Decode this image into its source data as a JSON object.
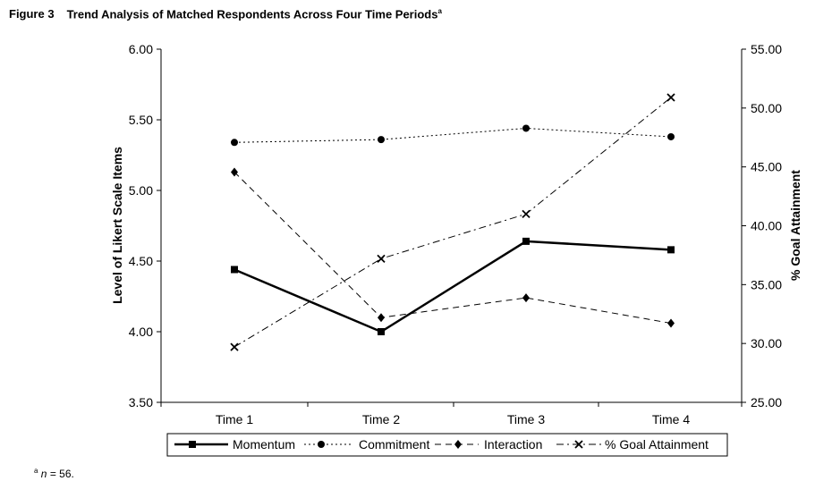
{
  "figure": {
    "label": "Figure 3",
    "title": "Trend Analysis of Matched Respondents Across Four Time Periods",
    "title_note_marker": "a",
    "footnote_marker": "a",
    "footnote_var": "n",
    "footnote_text": " = 56."
  },
  "chart_data": {
    "type": "line",
    "categories": [
      "Time 1",
      "Time 2",
      "Time 3",
      "Time 4"
    ],
    "y_left": {
      "label": "Level of Likert Scale Items",
      "range": [
        3.5,
        6.0
      ],
      "ticks": [
        "3.50",
        "4.00",
        "4.50",
        "5.00",
        "5.50",
        "6.00"
      ]
    },
    "y_right": {
      "label": "% Goal Attainment",
      "range": [
        25,
        55
      ],
      "ticks": [
        "25.00",
        "30.00",
        "35.00",
        "40.00",
        "45.00",
        "50.00",
        "55.00"
      ]
    },
    "series": [
      {
        "name": "Momentum",
        "axis": "left",
        "values": [
          4.44,
          4.0,
          4.64,
          4.58
        ],
        "line": "solid",
        "marker": "square"
      },
      {
        "name": "Commitment",
        "axis": "left",
        "values": [
          5.34,
          5.36,
          5.44,
          5.38
        ],
        "line": "dotted",
        "marker": "circle"
      },
      {
        "name": "Interaction",
        "axis": "left",
        "values": [
          5.13,
          4.1,
          4.24,
          4.06
        ],
        "line": "dashed",
        "marker": "diamond"
      },
      {
        "name": "% Goal Attainment",
        "axis": "right",
        "values": [
          29.7,
          37.2,
          41.0,
          50.9
        ],
        "line": "dashdot",
        "marker": "x"
      }
    ],
    "grid": false,
    "legend": "bottom"
  }
}
